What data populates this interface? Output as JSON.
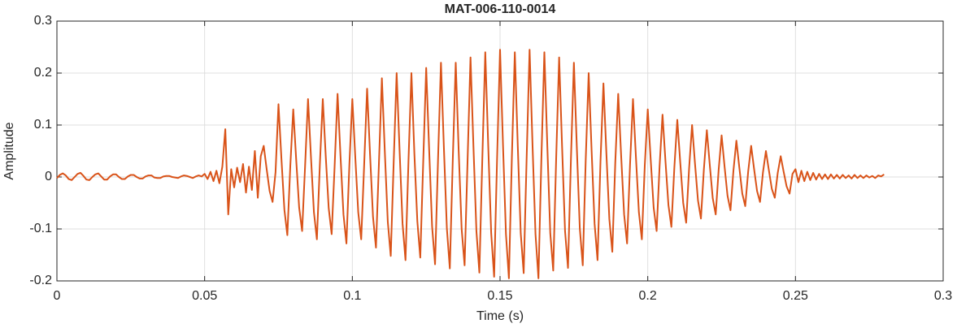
{
  "chart_data": {
    "type": "line",
    "title": "MAT-006-110-0014",
    "x_label": "Time (s)",
    "y_label": "Amplitude",
    "color": "#d95319",
    "grid": true,
    "xlim": [
      0,
      0.3
    ],
    "ylim": [
      -0.2,
      0.3
    ],
    "xticks": [
      0,
      0.05,
      0.1,
      0.15,
      0.2,
      0.25,
      0.3
    ],
    "yticks": [
      -0.2,
      -0.1,
      0,
      0.1,
      0.2,
      0.3
    ],
    "x": [
      0,
      0.001,
      0.002,
      0.003,
      0.004,
      0.005,
      0.006,
      0.007,
      0.008,
      0.009,
      0.01,
      0.011,
      0.012,
      0.013,
      0.014,
      0.015,
      0.016,
      0.017,
      0.018,
      0.019,
      0.02,
      0.021,
      0.022,
      0.023,
      0.024,
      0.025,
      0.026,
      0.027,
      0.028,
      0.029,
      0.03,
      0.031,
      0.032,
      0.033,
      0.034,
      0.035,
      0.036,
      0.037,
      0.038,
      0.039,
      0.04,
      0.041,
      0.042,
      0.043,
      0.044,
      0.045,
      0.046,
      0.047,
      0.048,
      0.049,
      0.05,
      0.051,
      0.052,
      0.053,
      0.054,
      0.055,
      0.056,
      0.057,
      0.058,
      0.059,
      0.06,
      0.061,
      0.062,
      0.063,
      0.064,
      0.065,
      0.066,
      0.067,
      0.068,
      0.069,
      0.07,
      0.071,
      0.072,
      0.073,
      0.074,
      0.075,
      0.076,
      0.077,
      0.078,
      0.079,
      0.08,
      0.081,
      0.082,
      0.083,
      0.084,
      0.085,
      0.086,
      0.087,
      0.088,
      0.089,
      0.09,
      0.091,
      0.092,
      0.093,
      0.094,
      0.095,
      0.096,
      0.097,
      0.098,
      0.099,
      0.1,
      0.101,
      0.102,
      0.103,
      0.104,
      0.105,
      0.106,
      0.107,
      0.108,
      0.109,
      0.11,
      0.111,
      0.112,
      0.113,
      0.114,
      0.115,
      0.116,
      0.117,
      0.118,
      0.119,
      0.12,
      0.121,
      0.122,
      0.123,
      0.124,
      0.125,
      0.126,
      0.127,
      0.128,
      0.129,
      0.13,
      0.131,
      0.132,
      0.133,
      0.134,
      0.135,
      0.136,
      0.137,
      0.138,
      0.139,
      0.14,
      0.141,
      0.142,
      0.143,
      0.144,
      0.145,
      0.146,
      0.147,
      0.148,
      0.149,
      0.15,
      0.151,
      0.152,
      0.153,
      0.154,
      0.155,
      0.156,
      0.157,
      0.158,
      0.159,
      0.16,
      0.161,
      0.162,
      0.163,
      0.164,
      0.165,
      0.166,
      0.167,
      0.168,
      0.169,
      0.17,
      0.171,
      0.172,
      0.173,
      0.174,
      0.175,
      0.176,
      0.177,
      0.178,
      0.179,
      0.18,
      0.181,
      0.182,
      0.183,
      0.184,
      0.185,
      0.186,
      0.187,
      0.188,
      0.189,
      0.19,
      0.191,
      0.192,
      0.193,
      0.194,
      0.195,
      0.196,
      0.197,
      0.198,
      0.199,
      0.2,
      0.201,
      0.202,
      0.203,
      0.204,
      0.205,
      0.206,
      0.207,
      0.208,
      0.209,
      0.21,
      0.211,
      0.212,
      0.213,
      0.214,
      0.215,
      0.216,
      0.217,
      0.218,
      0.219,
      0.22,
      0.221,
      0.222,
      0.223,
      0.224,
      0.225,
      0.226,
      0.227,
      0.228,
      0.229,
      0.23,
      0.231,
      0.232,
      0.233,
      0.234,
      0.235,
      0.236,
      0.237,
      0.238,
      0.239,
      0.24,
      0.241,
      0.242,
      0.243,
      0.244,
      0.245,
      0.246,
      0.247,
      0.248,
      0.249,
      0.25,
      0.251,
      0.252,
      0.253,
      0.254,
      0.255,
      0.256,
      0.257,
      0.258,
      0.259,
      0.26,
      0.261,
      0.262,
      0.263,
      0.264,
      0.265,
      0.266,
      0.267,
      0.268,
      0.269,
      0.27,
      0.271,
      0.272,
      0.273,
      0.274,
      0.275,
      0.276,
      0.277,
      0.278,
      0.279,
      0.28
    ],
    "values": [
      -0.002,
      0.004,
      0.007,
      0.003,
      -0.004,
      -0.006,
      0,
      0.006,
      0.008,
      0.002,
      -0.005,
      -0.006,
      0,
      0.005,
      0.007,
      0.001,
      -0.005,
      -0.005,
      0.001,
      0.005,
      0.005,
      0,
      -0.004,
      -0.004,
      0.001,
      0.004,
      0.004,
      0,
      -0.003,
      -0.003,
      0.001,
      0.003,
      0.003,
      -0.001,
      -0.002,
      -0.002,
      0.001,
      0.002,
      0.002,
      0,
      -0.001,
      -0.002,
      0.001,
      0.003,
      0.002,
      0,
      -0.002,
      0.001,
      0.003,
      0.001,
      0.006,
      -0.004,
      0.01,
      -0.008,
      0.012,
      -0.012,
      0.02,
      0.092,
      -0.072,
      0.015,
      -0.02,
      0.018,
      -0.01,
      0.025,
      -0.03,
      0.02,
      -0.025,
      0.05,
      -0.04,
      0.04,
      0.06,
      0.015,
      -0.027,
      -0.048,
      0.009,
      0.14,
      0.035,
      -0.063,
      -0.112,
      0.021,
      0.13,
      0.033,
      -0.059,
      -0.104,
      0.02,
      0.15,
      0.038,
      -0.068,
      -0.12,
      0.023,
      0.15,
      0.04,
      -0.06,
      -0.11,
      0.02,
      0.16,
      0.04,
      -0.072,
      -0.128,
      0.024,
      0.15,
      0.038,
      -0.068,
      -0.12,
      0.023,
      0.17,
      0.043,
      -0.077,
      -0.136,
      0.026,
      0.19,
      0.048,
      -0.086,
      -0.152,
      0.029,
      0.2,
      0.05,
      -0.09,
      -0.16,
      0.03,
      0.2,
      0.045,
      -0.085,
      -0.155,
      0.03,
      0.21,
      0.053,
      -0.095,
      -0.168,
      0.032,
      0.22,
      0.055,
      -0.099,
      -0.176,
      0.033,
      0.22,
      0.05,
      -0.1,
      -0.17,
      0.03,
      0.23,
      0.058,
      -0.104,
      -0.184,
      0.035,
      0.24,
      0.06,
      -0.108,
      -0.192,
      0.036,
      0.245,
      0.061,
      -0.11,
      -0.195,
      0.037,
      0.24,
      0.06,
      -0.108,
      -0.185,
      0.036,
      0.245,
      0.06,
      -0.11,
      -0.195,
      0.037,
      0.24,
      0.06,
      -0.108,
      -0.18,
      0.036,
      0.23,
      0.058,
      -0.104,
      -0.175,
      0.035,
      0.22,
      0.055,
      -0.099,
      -0.17,
      0.033,
      0.2,
      0.05,
      -0.09,
      -0.16,
      0.03,
      0.18,
      0.045,
      -0.081,
      -0.144,
      0.027,
      0.16,
      0.04,
      -0.072,
      -0.128,
      0.024,
      0.15,
      0.038,
      -0.068,
      -0.12,
      0.023,
      0.13,
      0.033,
      -0.059,
      -0.104,
      0.02,
      0.12,
      0.03,
      -0.054,
      -0.096,
      0.018,
      0.11,
      0.028,
      -0.05,
      -0.088,
      0.017,
      0.1,
      0.025,
      -0.045,
      -0.08,
      0.015,
      0.09,
      0.023,
      -0.041,
      -0.072,
      0.014,
      0.08,
      0.02,
      -0.036,
      -0.064,
      0.012,
      0.07,
      0.018,
      -0.032,
      -0.056,
      0.011,
      0.06,
      0.015,
      -0.027,
      -0.048,
      0.009,
      0.05,
      0.013,
      -0.023,
      -0.04,
      0.008,
      0.04,
      0.01,
      -0.018,
      -0.032,
      0.006,
      0.015,
      -0.01,
      0.012,
      -0.008,
      0.01,
      -0.006,
      0.008,
      -0.005,
      0.006,
      -0.004,
      0.005,
      -0.004,
      0.005,
      -0.003,
      0.004,
      -0.003,
      0.004,
      -0.002,
      0.003,
      -0.003,
      0.004,
      -0.002,
      0.003,
      -0.002,
      0.003,
      -0.001,
      0.002,
      -0.002,
      0.003,
      0.001,
      0.005
    ]
  }
}
